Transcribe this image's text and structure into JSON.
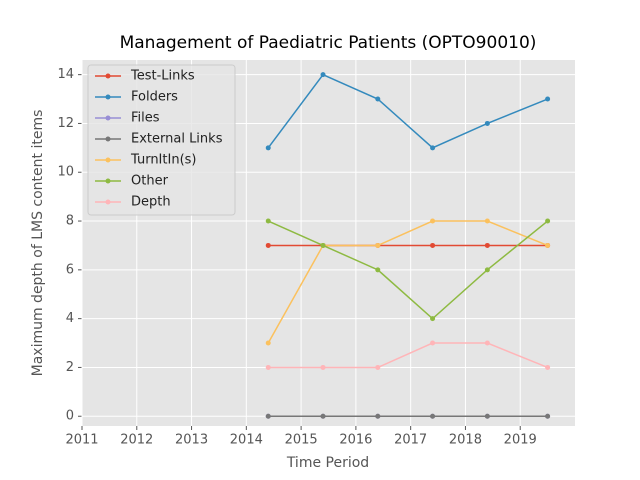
{
  "chart_data": {
    "type": "line",
    "title": "Management of Paediatric Patients (OPTO90010)",
    "xlabel": "Time Period",
    "ylabel": "Maximum depth of LMS content items",
    "x": [
      2014.4,
      2015.4,
      2016.4,
      2017.4,
      2018.4,
      2019.5
    ],
    "series": [
      {
        "name": "Test-Links",
        "color": "#E24A33",
        "values": [
          7,
          7,
          7,
          7,
          7,
          7
        ]
      },
      {
        "name": "Folders",
        "color": "#348ABD",
        "values": [
          11,
          14,
          13,
          11,
          12,
          13
        ]
      },
      {
        "name": "Files",
        "color": "#988ED5",
        "values": [
          0,
          0,
          0,
          0,
          0,
          0
        ]
      },
      {
        "name": "External Links",
        "color": "#777777",
        "values": [
          0,
          0,
          0,
          0,
          0,
          0
        ]
      },
      {
        "name": "TurnItIn(s)",
        "color": "#FBC15E",
        "values": [
          3,
          7,
          7,
          8,
          8,
          7
        ]
      },
      {
        "name": "Other",
        "color": "#8EBA42",
        "values": [
          8,
          7,
          6,
          4,
          6,
          8
        ]
      },
      {
        "name": "Depth",
        "color": "#FFB5B8",
        "values": [
          2,
          2,
          2,
          3,
          3,
          2
        ]
      }
    ],
    "xlim": [
      2011,
      2020
    ],
    "xticks": [
      2011,
      2012,
      2013,
      2014,
      2015,
      2016,
      2017,
      2018,
      2019
    ],
    "ylim": [
      -0.4,
      14.6
    ],
    "yticks": [
      0,
      2,
      4,
      6,
      8,
      10,
      12,
      14
    ],
    "grid": true,
    "legend": "upper left"
  }
}
